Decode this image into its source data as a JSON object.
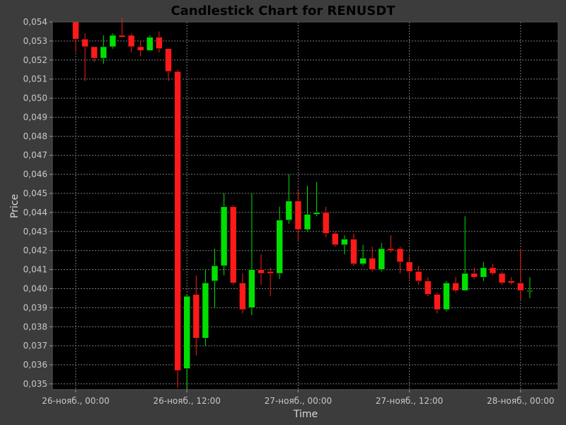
{
  "chart_data": {
    "type": "candlestick",
    "title": "Candlestick Chart for RENUSDT",
    "xlabel": "Time",
    "ylabel": "Price",
    "ylim": [
      0.0347,
      0.054
    ],
    "y_ticks": [
      "0,054",
      "0,053",
      "0,052",
      "0,051",
      "0,050",
      "0,049",
      "0,048",
      "0,047",
      "0,046",
      "0,045",
      "0,044",
      "0,043",
      "0,042",
      "0,041",
      "0,040",
      "0,039",
      "0,038",
      "0,037",
      "0,036",
      "0,035"
    ],
    "x_ticks": [
      "26-нояб., 00:00",
      "26-нояб., 12:00",
      "27-нояб., 00:00",
      "27-нояб., 12:00",
      "28-нояб., 00:00"
    ],
    "x_tick_hours": [
      0,
      12,
      24,
      36,
      48
    ],
    "interval_hours": 1,
    "grid": true,
    "colors": {
      "background": "#3c3c3c",
      "plot_bg": "#000000",
      "up": "#00e000",
      "down": "#ff1a1a",
      "grid": "#7a7a7a"
    },
    "candles": [
      {
        "t": 0,
        "o": 0.054,
        "h": 0.054,
        "l": 0.0524,
        "c": 0.0531
      },
      {
        "t": 1,
        "o": 0.0531,
        "h": 0.0534,
        "l": 0.0509,
        "c": 0.0527
      },
      {
        "t": 2,
        "o": 0.0527,
        "h": 0.0527,
        "l": 0.0519,
        "c": 0.0521
      },
      {
        "t": 3,
        "o": 0.0521,
        "h": 0.0533,
        "l": 0.0518,
        "c": 0.0527
      },
      {
        "t": 4,
        "o": 0.0527,
        "h": 0.0534,
        "l": 0.0526,
        "c": 0.0533
      },
      {
        "t": 5,
        "o": 0.0533,
        "h": 0.0542,
        "l": 0.0532,
        "c": 0.0532
      },
      {
        "t": 6,
        "o": 0.0533,
        "h": 0.0534,
        "l": 0.0524,
        "c": 0.0527
      },
      {
        "t": 7,
        "o": 0.0527,
        "h": 0.053,
        "l": 0.0522,
        "c": 0.0525
      },
      {
        "t": 8,
        "o": 0.0525,
        "h": 0.0533,
        "l": 0.0525,
        "c": 0.0532
      },
      {
        "t": 9,
        "o": 0.0532,
        "h": 0.0535,
        "l": 0.0524,
        "c": 0.0526
      },
      {
        "t": 10,
        "o": 0.0526,
        "h": 0.0526,
        "l": 0.0509,
        "c": 0.0514
      },
      {
        "t": 11,
        "o": 0.0514,
        "h": 0.0515,
        "l": 0.0348,
        "c": 0.0357
      },
      {
        "t": 12,
        "o": 0.0358,
        "h": 0.0397,
        "l": 0.0347,
        "c": 0.0396
      },
      {
        "t": 13,
        "o": 0.0397,
        "h": 0.0407,
        "l": 0.0365,
        "c": 0.0374
      },
      {
        "t": 14,
        "o": 0.0374,
        "h": 0.041,
        "l": 0.037,
        "c": 0.0403
      },
      {
        "t": 15,
        "o": 0.0404,
        "h": 0.0421,
        "l": 0.039,
        "c": 0.0412
      },
      {
        "t": 16,
        "o": 0.0412,
        "h": 0.045,
        "l": 0.0407,
        "c": 0.0443
      },
      {
        "t": 17,
        "o": 0.0443,
        "h": 0.0444,
        "l": 0.0402,
        "c": 0.0403
      },
      {
        "t": 18,
        "o": 0.0403,
        "h": 0.0408,
        "l": 0.0387,
        "c": 0.0389
      },
      {
        "t": 19,
        "o": 0.039,
        "h": 0.045,
        "l": 0.0386,
        "c": 0.041
      },
      {
        "t": 20,
        "o": 0.041,
        "h": 0.0418,
        "l": 0.0402,
        "c": 0.0408
      },
      {
        "t": 21,
        "o": 0.0409,
        "h": 0.0411,
        "l": 0.0396,
        "c": 0.0408
      },
      {
        "t": 22,
        "o": 0.0408,
        "h": 0.0443,
        "l": 0.0405,
        "c": 0.0436
      },
      {
        "t": 23,
        "o": 0.0436,
        "h": 0.046,
        "l": 0.0434,
        "c": 0.0446
      },
      {
        "t": 24,
        "o": 0.0446,
        "h": 0.0452,
        "l": 0.0425,
        "c": 0.0431
      },
      {
        "t": 25,
        "o": 0.0431,
        "h": 0.0454,
        "l": 0.043,
        "c": 0.0439
      },
      {
        "t": 26,
        "o": 0.0439,
        "h": 0.0456,
        "l": 0.0438,
        "c": 0.044
      },
      {
        "t": 27,
        "o": 0.044,
        "h": 0.0443,
        "l": 0.0427,
        "c": 0.0429
      },
      {
        "t": 28,
        "o": 0.0429,
        "h": 0.043,
        "l": 0.0422,
        "c": 0.0423
      },
      {
        "t": 29,
        "o": 0.0423,
        "h": 0.0428,
        "l": 0.0418,
        "c": 0.0426
      },
      {
        "t": 30,
        "o": 0.0426,
        "h": 0.0429,
        "l": 0.0412,
        "c": 0.0413
      },
      {
        "t": 31,
        "o": 0.0413,
        "h": 0.0423,
        "l": 0.0412,
        "c": 0.0416
      },
      {
        "t": 32,
        "o": 0.0416,
        "h": 0.0422,
        "l": 0.0409,
        "c": 0.041
      },
      {
        "t": 33,
        "o": 0.041,
        "h": 0.0424,
        "l": 0.0409,
        "c": 0.0421
      },
      {
        "t": 34,
        "o": 0.0421,
        "h": 0.0428,
        "l": 0.0419,
        "c": 0.042
      },
      {
        "t": 35,
        "o": 0.0421,
        "h": 0.0422,
        "l": 0.0408,
        "c": 0.0414
      },
      {
        "t": 36,
        "o": 0.0414,
        "h": 0.0417,
        "l": 0.0405,
        "c": 0.0409
      },
      {
        "t": 37,
        "o": 0.0409,
        "h": 0.0412,
        "l": 0.0402,
        "c": 0.0404
      },
      {
        "t": 38,
        "o": 0.0404,
        "h": 0.0406,
        "l": 0.0396,
        "c": 0.0397
      },
      {
        "t": 39,
        "o": 0.0397,
        "h": 0.0398,
        "l": 0.0387,
        "c": 0.0389
      },
      {
        "t": 40,
        "o": 0.0389,
        "h": 0.0404,
        "l": 0.0388,
        "c": 0.0403
      },
      {
        "t": 41,
        "o": 0.0403,
        "h": 0.0406,
        "l": 0.0398,
        "c": 0.0399
      },
      {
        "t": 42,
        "o": 0.0399,
        "h": 0.0438,
        "l": 0.0399,
        "c": 0.0408
      },
      {
        "t": 43,
        "o": 0.0408,
        "h": 0.0411,
        "l": 0.0405,
        "c": 0.0406
      },
      {
        "t": 44,
        "o": 0.0406,
        "h": 0.0414,
        "l": 0.0404,
        "c": 0.0411
      },
      {
        "t": 45,
        "o": 0.0411,
        "h": 0.0413,
        "l": 0.0407,
        "c": 0.0408
      },
      {
        "t": 46,
        "o": 0.0408,
        "h": 0.0409,
        "l": 0.0402,
        "c": 0.0403
      },
      {
        "t": 47,
        "o": 0.0404,
        "h": 0.0406,
        "l": 0.0402,
        "c": 0.0403
      },
      {
        "t": 48,
        "o": 0.0403,
        "h": 0.0421,
        "l": 0.0394,
        "c": 0.0399
      },
      {
        "t": 49,
        "o": 0.0399,
        "h": 0.0406,
        "l": 0.0395,
        "c": 0.0399
      }
    ]
  }
}
